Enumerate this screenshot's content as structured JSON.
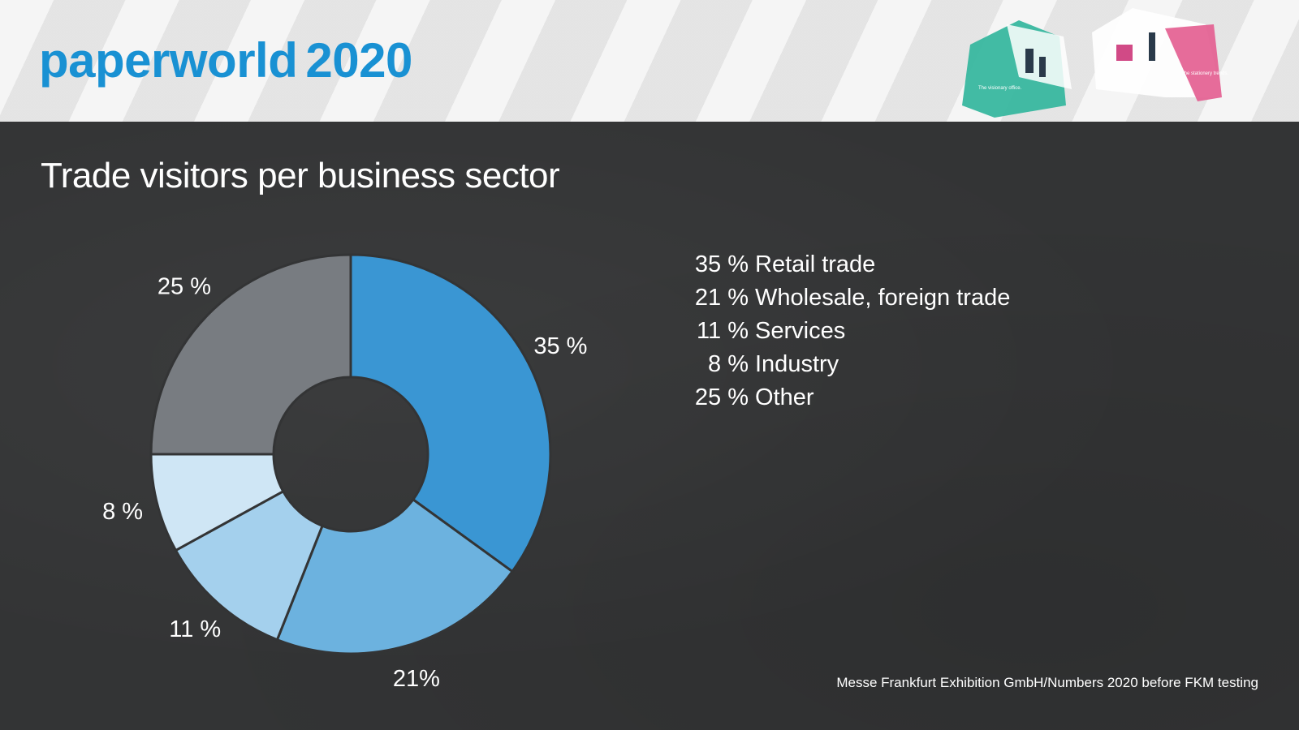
{
  "brand": {
    "name": "paperworld",
    "year": "2020"
  },
  "header_art": {
    "label_left": "The visionary office.",
    "label_right": "The stationery trends."
  },
  "title": "Trade visitors per business sector",
  "source": "Messe Frankfurt Exhibition GmbH/Numbers 2020 before FKM testing",
  "chart_data": {
    "type": "pie",
    "donut": true,
    "categories": [
      "Retail trade",
      "Wholesale, foreign trade",
      "Services",
      "Industry",
      "Other"
    ],
    "values": [
      35,
      21,
      11,
      8,
      25
    ],
    "slice_labels": [
      "35 %",
      "21%",
      "11 %",
      "8 %",
      "25 %"
    ],
    "legend_entries": [
      {
        "pct": "35 %",
        "label": "Retail trade"
      },
      {
        "pct": "21 %",
        "label": "Wholesale, foreign trade"
      },
      {
        "pct": "11 %",
        "label": "Services"
      },
      {
        "pct": "8 %",
        "label": "Industry"
      },
      {
        "pct": "25 %",
        "label": "Other"
      }
    ],
    "colors": [
      "#3a96d3",
      "#6cb2df",
      "#a4d0ed",
      "#cfe6f5",
      "#787c81"
    ],
    "legend_placement": "right"
  }
}
